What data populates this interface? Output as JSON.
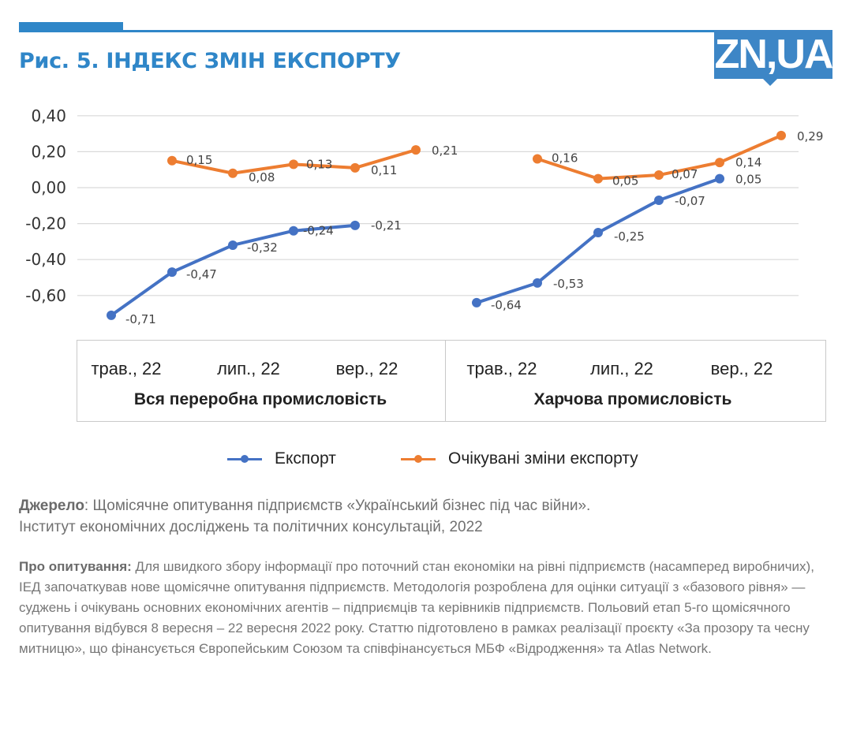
{
  "header": {
    "title": "Рис. 5. ІНДЕКС ЗМІН ЕКСПОРТУ",
    "logo_text": "ZN,UA",
    "accent_color": "#2f86c8"
  },
  "chart_data": {
    "type": "line",
    "title": "Рис. 5. ІНДЕКС ЗМІН ЕКСПОРТУ",
    "xlabel": "",
    "ylabel": "",
    "ylim": [
      -0.7,
      0.4
    ],
    "yticks": [
      "0,40",
      "0,20",
      "0,00",
      "-0,20",
      "-0,40",
      "-0,60"
    ],
    "ytick_values": [
      0.4,
      0.2,
      0.0,
      -0.2,
      -0.4,
      -0.6
    ],
    "grid": true,
    "legend_position": "bottom",
    "groups": [
      {
        "name": "Вся переробна промисловість",
        "tick_labels": [
          "трав., 22",
          "лип., 22",
          "вер., 22"
        ],
        "series": [
          {
            "name": "Експорт",
            "color": "#4472c4",
            "slots": [
              0,
              1,
              2,
              3,
              4
            ],
            "values": [
              -0.71,
              -0.47,
              -0.32,
              -0.24,
              -0.21
            ],
            "labels": [
              "-0,71",
              "-0,47",
              "-0,32",
              "-0,24",
              "-0,21"
            ]
          },
          {
            "name": "Очікувані зміни експорту",
            "color": "#ed7d31",
            "slots": [
              1,
              2,
              3,
              4,
              5
            ],
            "values": [
              0.15,
              0.08,
              0.13,
              0.11,
              0.21
            ],
            "labels": [
              "0,15",
              "0,08",
              "0,13",
              "0,11",
              "0,21"
            ]
          }
        ]
      },
      {
        "name": "Харчова промисловість",
        "tick_labels": [
          "трав., 22",
          "лип., 22",
          "вер., 22"
        ],
        "series": [
          {
            "name": "Експорт",
            "color": "#4472c4",
            "slots": [
              0,
              1,
              2,
              3,
              4
            ],
            "values": [
              -0.64,
              -0.53,
              -0.25,
              -0.07,
              0.05
            ],
            "labels": [
              "-0,64",
              "-0,53",
              "-0,25",
              "-0,07",
              "0,05"
            ]
          },
          {
            "name": "Очікувані зміни експорту",
            "color": "#ed7d31",
            "slots": [
              1,
              2,
              3,
              4,
              5
            ],
            "values": [
              0.16,
              0.05,
              0.07,
              0.14,
              0.29
            ],
            "labels": [
              "0,16",
              "0,05",
              "0,07",
              "0,14",
              "0,29"
            ]
          }
        ]
      }
    ],
    "legend": [
      {
        "name": "Експорт",
        "color": "#4472c4"
      },
      {
        "name": "Очікувані зміни експорту",
        "color": "#ed7d31"
      }
    ]
  },
  "source": {
    "label": "Джерело",
    "text": ": Щомісячне опитування підприємств «Український бізнес під час війни».",
    "line2": "Інститут економічних досліджень та політичних консультацій, 2022"
  },
  "about": {
    "label": "Про опитування:",
    "text": " Для швидкого збору інформації про поточний стан економіки на рівні підприємств (насамперед виробничих), ІЕД  започаткував нове щомісячне опитування підприємств. Методологія розроблена для оцінки ситуації з «базового рівня» — суджень і очікувань основних економічних агентів – підприємців та керівників підприємств. Польовий етап 5-го щомісячного опитування відбувся 8 вересня – 22 вересня 2022 року. Статтю підготовлено в рамках реалізації проєкту «За прозору та чесну митницю», що фінансується Європейським Союзом та співфінансується МБФ «Відродження» та Atlas Network."
  }
}
